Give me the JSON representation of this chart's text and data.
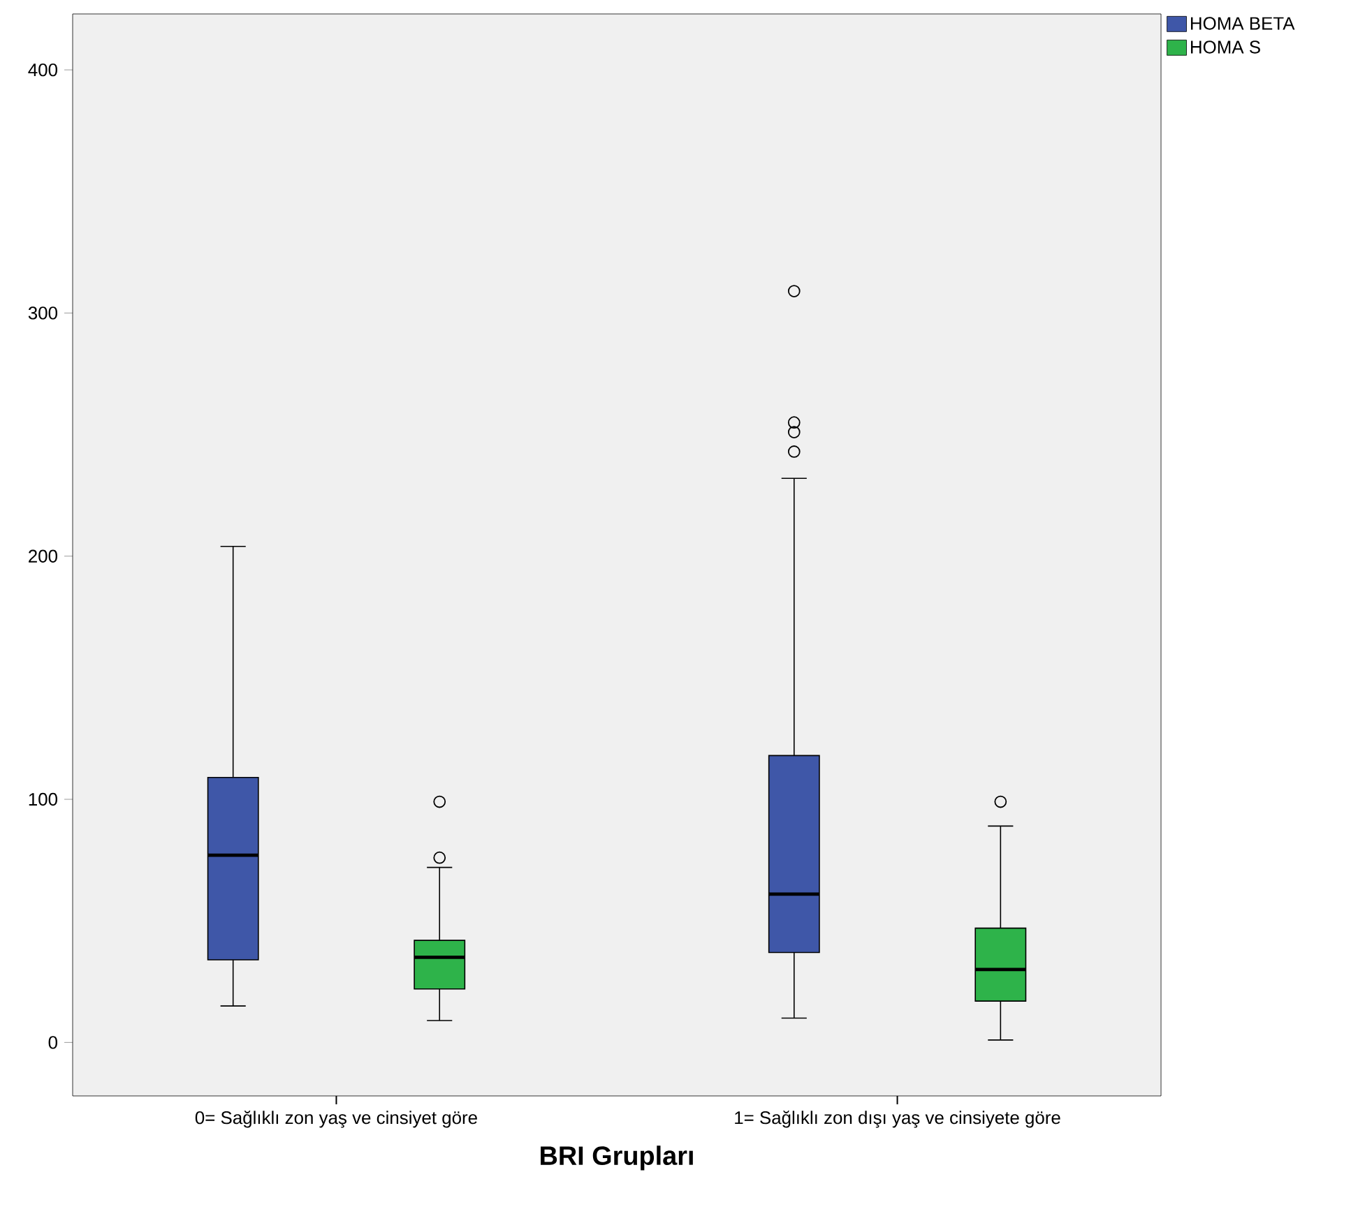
{
  "chart_data": {
    "type": "box",
    "xlabel": "BRI Grupları",
    "categories": [
      "0= Sağlıklı zon yaş ve cinsiyet göre",
      "1= Sağlıklı zon dışı yaş ve cinsiyete göre"
    ],
    "series": [
      {
        "name": "HOMA BETA",
        "color": "#3f57a8",
        "boxes": [
          {
            "low": 15,
            "q1": 34,
            "median": 77,
            "q3": 109,
            "high": 204
          },
          {
            "low": 10,
            "q1": 37,
            "median": 61,
            "q3": 118,
            "high": 232,
            "outliers": [
              309,
              255,
              251,
              243
            ]
          }
        ]
      },
      {
        "name": "HOMA S",
        "color": "#2eb34a",
        "boxes": [
          {
            "low": 9,
            "q1": 22,
            "median": 35,
            "q3": 42,
            "high": 72,
            "outliers": [
              99,
              76
            ]
          },
          {
            "low": 1,
            "q1": 17,
            "median": 30,
            "q3": 47,
            "high": 89,
            "outliers": [
              99
            ]
          }
        ]
      }
    ],
    "ylim": [
      -22,
      423
    ],
    "yticks": [
      0,
      100,
      200,
      300,
      400
    ],
    "legend": "top right"
  }
}
